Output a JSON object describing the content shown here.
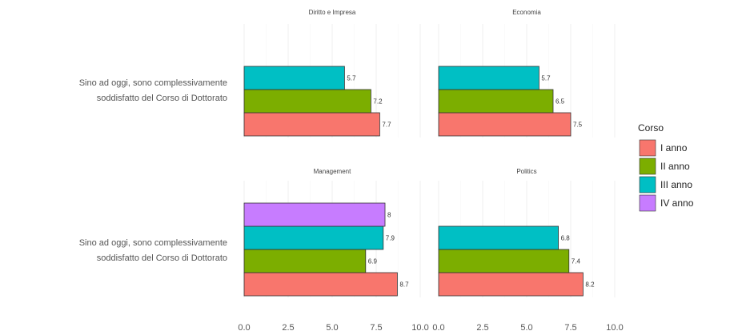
{
  "chart_data": {
    "type": "bar",
    "orientation": "horizontal",
    "category_label": "Sino ad oggi, sono complessivamente soddisfatto del Corso di Dottorato",
    "category_lines": [
      "Sino ad oggi, sono complessivamente",
      "soddisfatto del Corso di Dottorato"
    ],
    "xlim": [
      0,
      10
    ],
    "x_ticks": [
      "0.0",
      "2.5",
      "5.0",
      "7.5",
      "10.0"
    ],
    "grid": true,
    "legend": {
      "title": "Corso",
      "position": "right",
      "entries": [
        {
          "name": "I anno",
          "color": "#F8766D"
        },
        {
          "name": "II anno",
          "color": "#7CAE00"
        },
        {
          "name": "III anno",
          "color": "#00BFC4"
        },
        {
          "name": "IV anno",
          "color": "#C77CFF"
        }
      ]
    },
    "panels": [
      {
        "title": "Diritto e Impresa",
        "bars": [
          {
            "series": "I anno",
            "value": 7.7,
            "label": "7.7"
          },
          {
            "series": "II anno",
            "value": 7.2,
            "label": "7.2"
          },
          {
            "series": "III anno",
            "value": 5.7,
            "label": "5.7"
          }
        ]
      },
      {
        "title": "Economia",
        "bars": [
          {
            "series": "I anno",
            "value": 7.5,
            "label": "7.5"
          },
          {
            "series": "II anno",
            "value": 6.5,
            "label": "6.5"
          },
          {
            "series": "III anno",
            "value": 5.7,
            "label": "5.7"
          }
        ]
      },
      {
        "title": "Management",
        "bars": [
          {
            "series": "I anno",
            "value": 8.7,
            "label": "8.7"
          },
          {
            "series": "II anno",
            "value": 6.9,
            "label": "6.9"
          },
          {
            "series": "III anno",
            "value": 7.9,
            "label": "7.9"
          },
          {
            "series": "IV anno",
            "value": 8.0,
            "label": "8"
          }
        ]
      },
      {
        "title": "Politics",
        "bars": [
          {
            "series": "I anno",
            "value": 8.2,
            "label": "8.2"
          },
          {
            "series": "II anno",
            "value": 7.4,
            "label": "7.4"
          },
          {
            "series": "III anno",
            "value": 6.8,
            "label": "6.8"
          }
        ]
      }
    ]
  }
}
